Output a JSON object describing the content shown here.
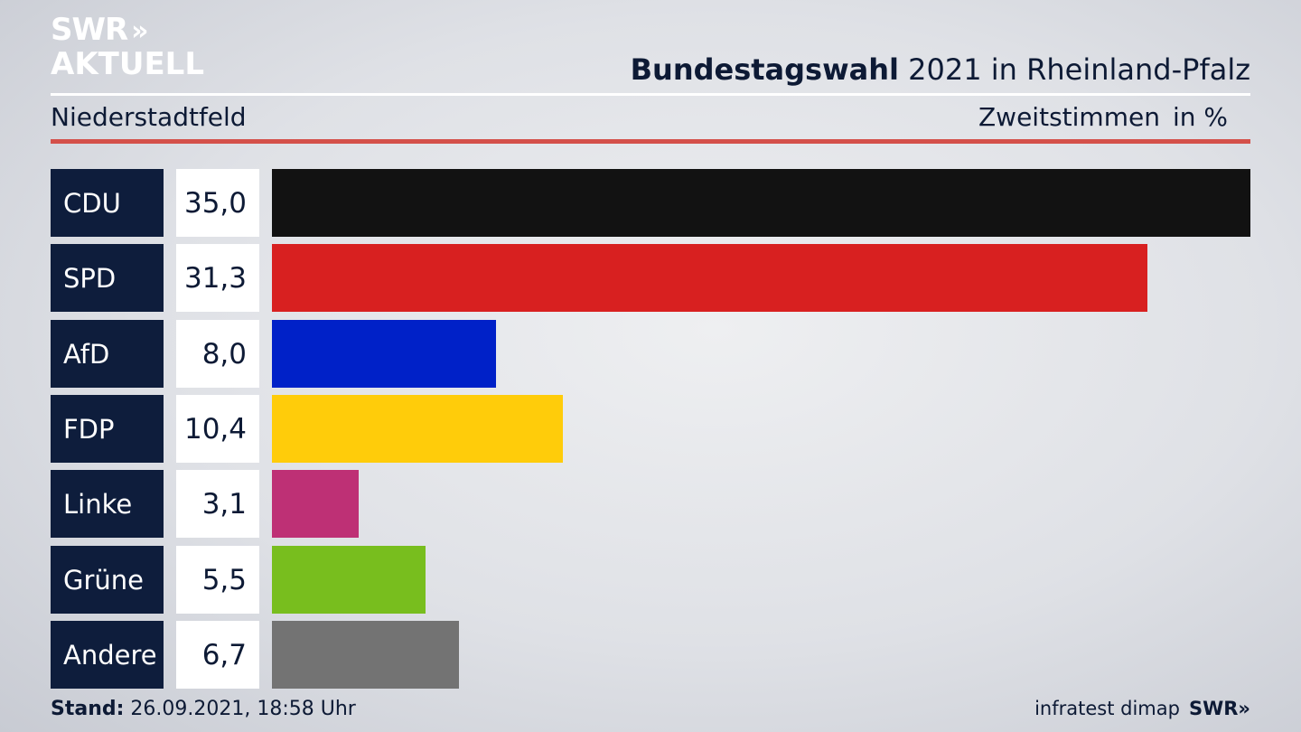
{
  "logo": {
    "line1": "SWR",
    "arrows": "»",
    "line2": "AKTUELL"
  },
  "header": {
    "title_bold": "Bundestagswahl",
    "title_rest": " 2021 in Rheinland-Pfalz"
  },
  "subheader": {
    "place": "Niederstadtfeld",
    "measure": "Zweitstimmen",
    "unit": "in %"
  },
  "footer": {
    "stand_label": "Stand:",
    "stand_value": " 26.09.2021, 18:58 Uhr",
    "source": "infratest dimap",
    "brand": "SWR»"
  },
  "chart_data": {
    "type": "bar",
    "orientation": "horizontal",
    "title": "Bundestagswahl 2021 in Rheinland-Pfalz",
    "categories": [
      "CDU",
      "SPD",
      "AfD",
      "FDP",
      "Linke",
      "Grüne",
      "Andere"
    ],
    "values": [
      35.0,
      31.3,
      8.0,
      10.4,
      3.1,
      5.5,
      6.7
    ],
    "value_labels": [
      "35,0",
      "31,3",
      "8,0",
      "10,4",
      "3,1",
      "5,5",
      "6,7"
    ],
    "colors": [
      "#121212",
      "#d82020",
      "#0021c8",
      "#ffcc0a",
      "#be3075",
      "#78be1e",
      "#737373"
    ],
    "xlim": [
      0,
      35.0
    ],
    "grid": false,
    "legend": "none"
  }
}
